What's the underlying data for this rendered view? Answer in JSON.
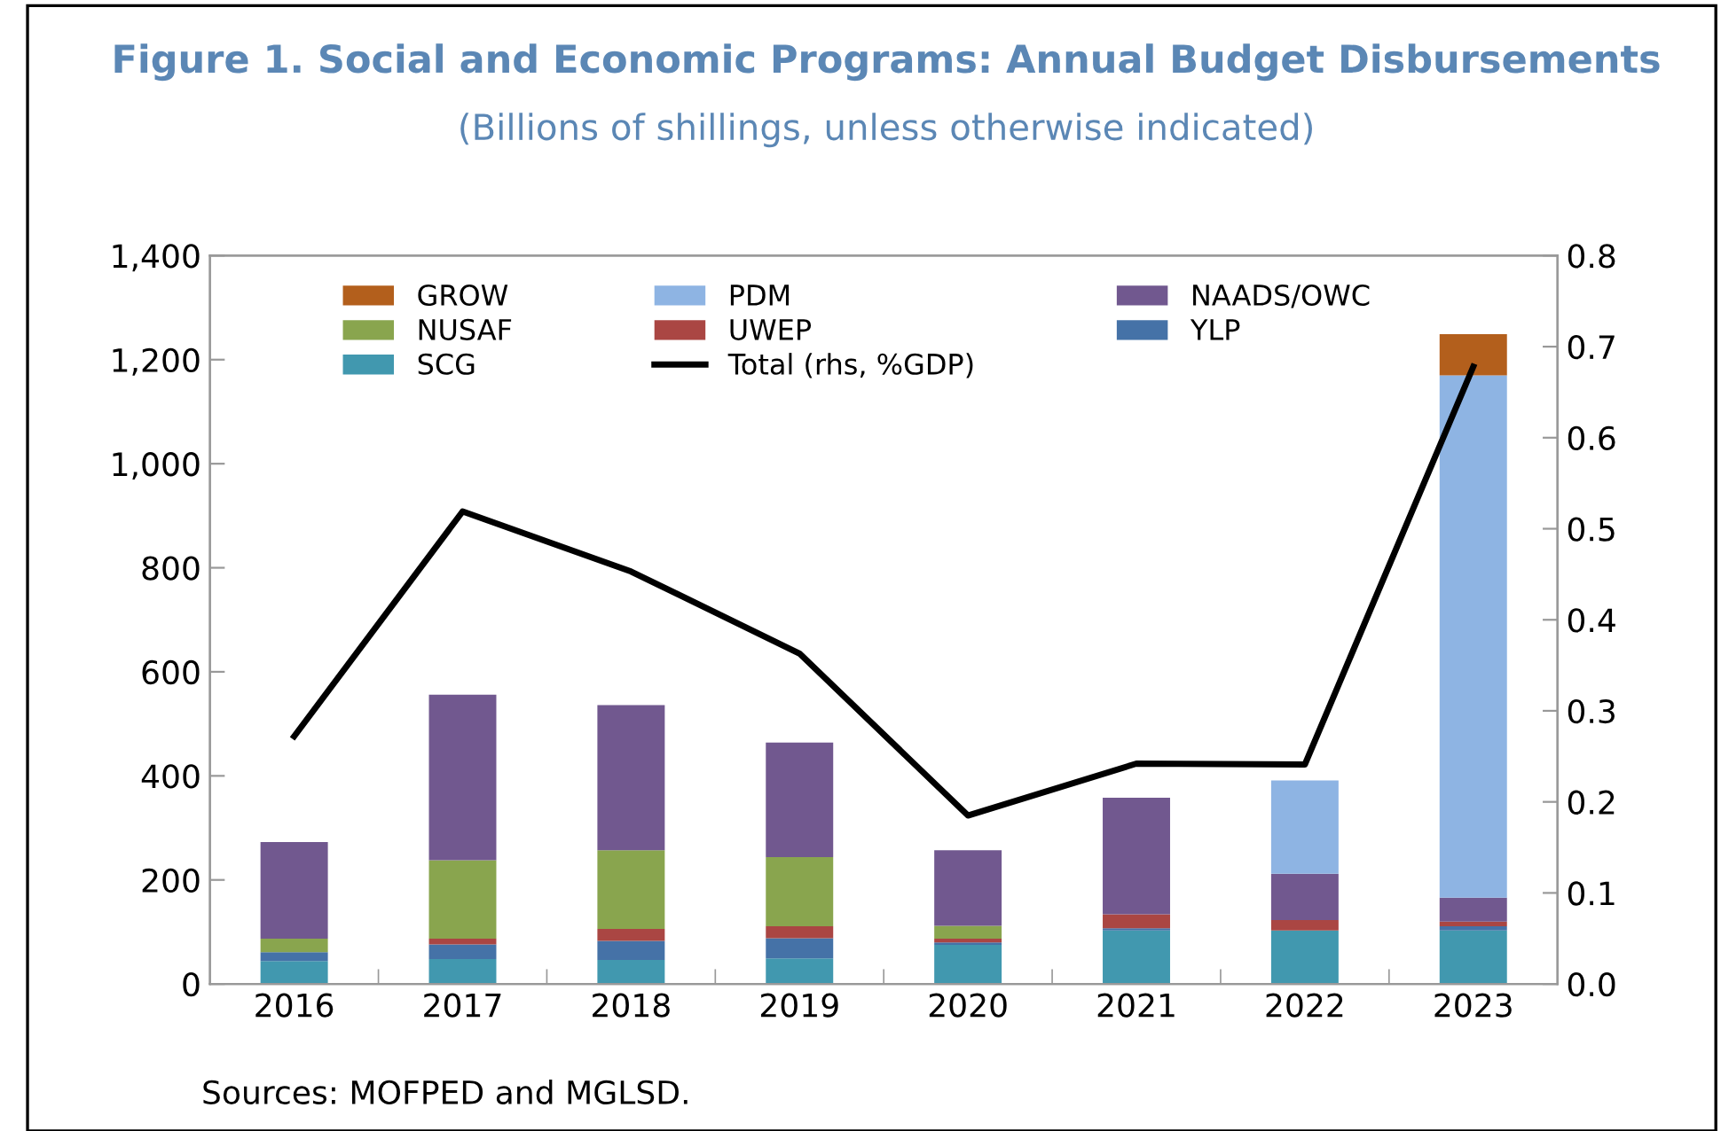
{
  "chart_data": {
    "type": "bar",
    "stacked": true,
    "title": "Figure 1. Social and Economic Programs: Annual Budget Disbursements",
    "subtitle": "(Billions of shillings, unless otherwise indicated)",
    "annotations": [
      "Sources: MOFPED and MGLSD."
    ],
    "categories": [
      "2016",
      "2017",
      "2018",
      "2019",
      "2020",
      "2021",
      "2022",
      "2023"
    ],
    "series": [
      {
        "name": "SCG",
        "color": "#4198af",
        "values": [
          44,
          48,
          46,
          49,
          75,
          103,
          103,
          103
        ]
      },
      {
        "name": "YLP",
        "color": "#4572a7",
        "values": [
          17,
          28,
          37,
          39,
          5,
          4,
          0,
          8
        ]
      },
      {
        "name": "UWEP",
        "color": "#aa4643",
        "values": [
          0,
          11,
          23,
          23,
          7,
          27,
          20,
          9
        ]
      },
      {
        "name": "NUSAF",
        "color": "#89a54e",
        "values": [
          26,
          151,
          151,
          133,
          25,
          0,
          0,
          0
        ]
      },
      {
        "name": "NAADS/OWC",
        "color": "#71588f",
        "values": [
          186,
          318,
          279,
          220,
          145,
          224,
          89,
          46
        ]
      },
      {
        "name": "PDM",
        "color": "#8eb4e3",
        "values": [
          0,
          0,
          0,
          0,
          0,
          0,
          179,
          1004
        ]
      },
      {
        "name": "GROW",
        "color": "#b35f1c",
        "values": [
          0,
          0,
          0,
          0,
          0,
          0,
          0,
          79
        ]
      },
      {
        "name": "Total (rhs, %GDP)",
        "type": "line",
        "axis": "y2",
        "color": "#000000",
        "values": [
          0.272,
          0.519,
          0.453,
          0.363,
          0.185,
          0.242,
          0.241,
          0.678
        ]
      }
    ],
    "ylim": [
      0,
      1400
    ],
    "yticks": [
      0,
      {
        "value": 200,
        "label": "200"
      },
      {
        "value": 400,
        "label": "400"
      },
      {
        "value": 600,
        "label": "600"
      },
      {
        "value": 800,
        "label": "800"
      },
      {
        "value": 1000,
        "label": "1,000"
      },
      {
        "value": 1200,
        "label": "1,200"
      },
      {
        "value": 1400,
        "label": "1,400"
      }
    ],
    "y2lim": [
      0,
      0.8
    ],
    "y2ticks": [
      {
        "value": 0,
        "label": "0.0"
      },
      0.1,
      0.2,
      0.3,
      0.4,
      0.5,
      0.6,
      0.7,
      0.8
    ],
    "legend": "top",
    "grid": false
  }
}
